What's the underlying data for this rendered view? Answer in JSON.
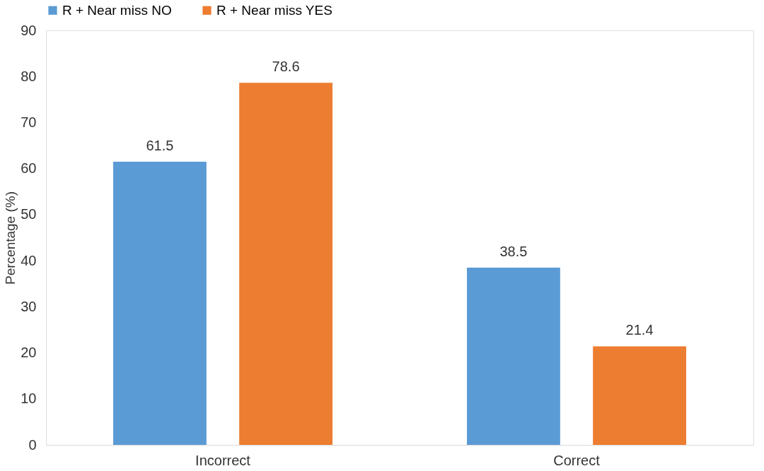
{
  "chart_data": {
    "type": "bar",
    "ylabel": "Percentage (%)",
    "categories": [
      "Incorrect",
      "Correct"
    ],
    "series": [
      {
        "name": "R + Near miss NO",
        "color": "#5b9bd5",
        "values": [
          61.5,
          38.5
        ]
      },
      {
        "name": "R + Near miss YES",
        "color": "#ed7d31",
        "values": [
          78.6,
          21.4
        ]
      }
    ],
    "ylim": [
      0,
      90
    ],
    "yticks": [
      0,
      10,
      20,
      30,
      40,
      50,
      60,
      70,
      80,
      90
    ],
    "grid": false,
    "legend": "top",
    "data_labels": true
  }
}
